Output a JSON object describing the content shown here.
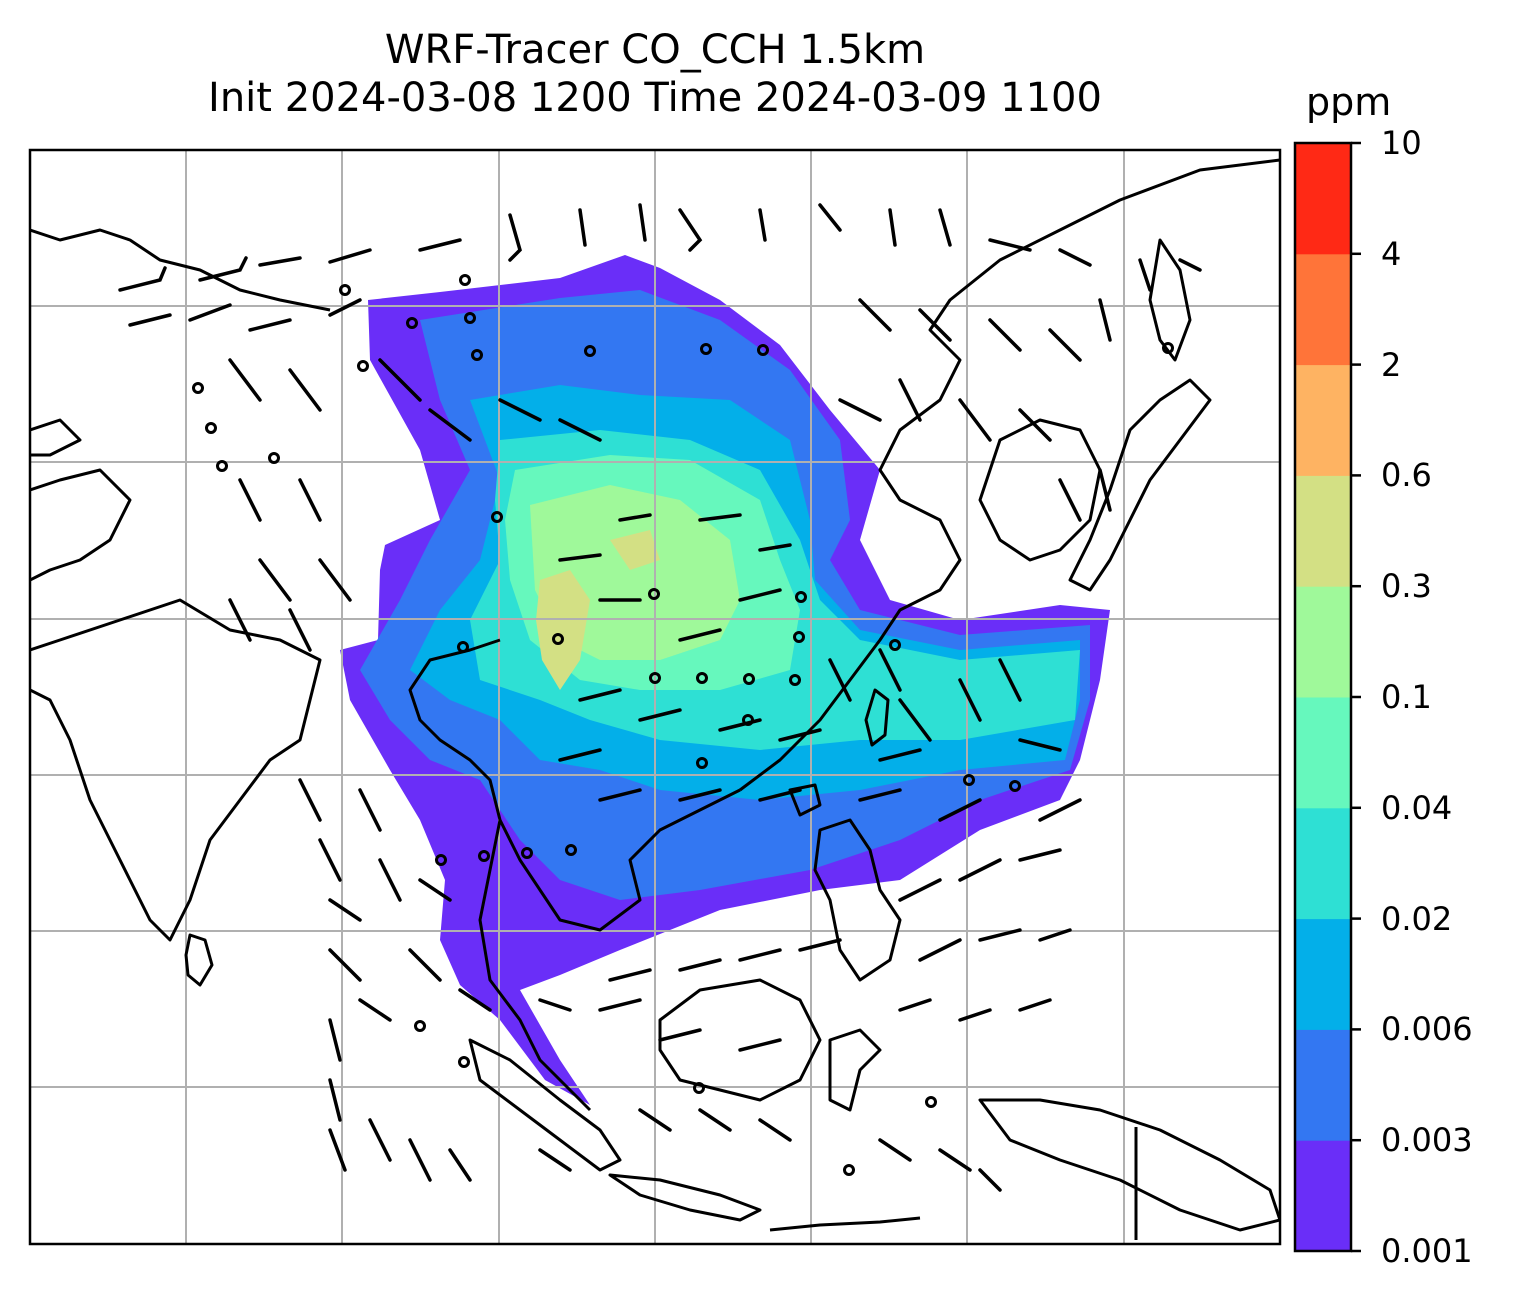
{
  "title": {
    "line1": "WRF-Tracer CO_CCH 1.5km",
    "line2": "Init 2024-03-08 1200 Time 2024-03-09 1100"
  },
  "colorbar": {
    "unit": "ppm",
    "ticks": [
      "0.001",
      "0.003",
      "0.006",
      "0.02",
      "0.04",
      "0.1",
      "0.3",
      "0.6",
      "2",
      "4",
      "10"
    ],
    "colors": [
      "#6a2ef8",
      "#3377f2",
      "#03afe9",
      "#2ee0d4",
      "#66f8bd",
      "#9ff99a",
      "#d3e084",
      "#feb362",
      "#ff7439",
      "#ff2915"
    ]
  },
  "chart_data": {
    "type": "heatmap",
    "variable": "CO_CCH",
    "unit": "ppm",
    "levels": [
      0.001,
      0.003,
      0.006,
      0.02,
      0.04,
      0.1,
      0.3,
      0.6,
      2,
      4,
      10
    ],
    "grid": true,
    "overlay": "wind barbs and coastlines"
  }
}
